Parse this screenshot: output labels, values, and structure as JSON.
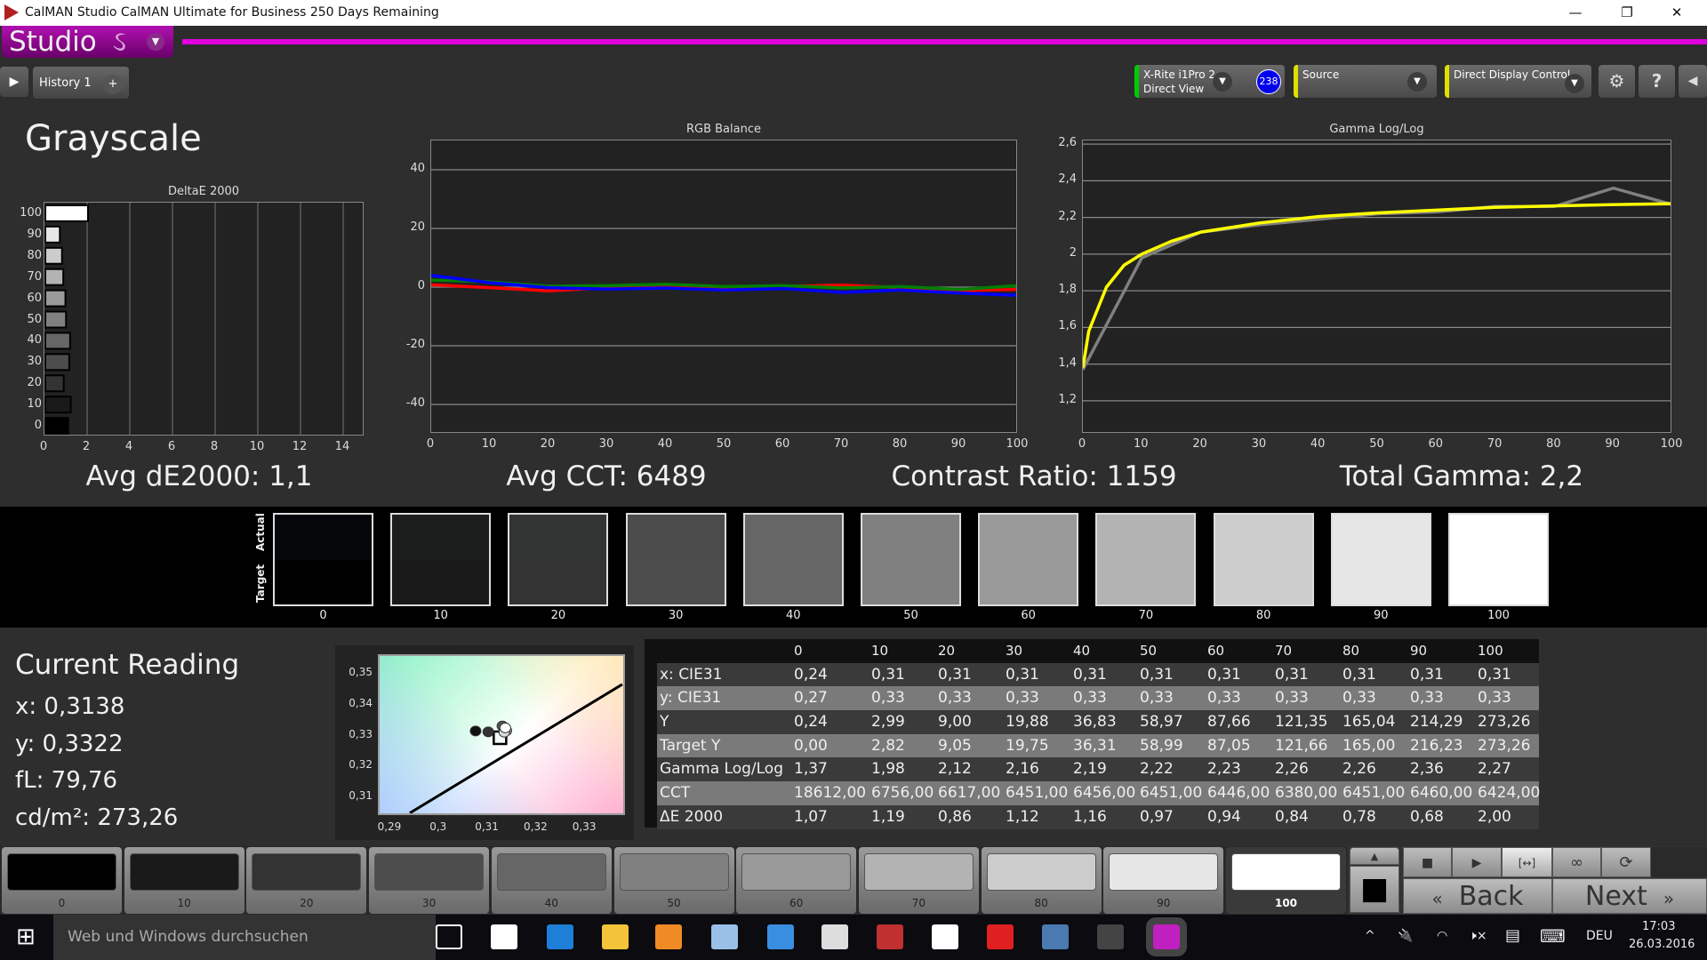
{
  "window": {
    "title": "CalMAN Studio CalMAN Ultimate for Business 250 Days Remaining",
    "minimize": "—",
    "restore": "❐",
    "close": "✕"
  },
  "app": {
    "logo_text": "Studio",
    "logo_symbol": "ઽ",
    "menu_arrow": "▼",
    "accent": "#e000e0"
  },
  "tabs": {
    "toggle": "▶",
    "items": [
      {
        "label": "History 1"
      }
    ],
    "add": "+"
  },
  "toolbar": {
    "meter": {
      "line1": "X-Rite i1Pro 2",
      "line2": "Direct View",
      "status_color": "#00cc00",
      "badge": "238",
      "dropdown": "▼"
    },
    "source": {
      "label": "Source",
      "status_color": "#e0e000",
      "dropdown": "▼"
    },
    "display": {
      "label": "Direct Display Control",
      "status_color": "#e0e000",
      "dropdown": "▼"
    },
    "settings_icon": "⚙",
    "help_icon": "?",
    "collapse_icon": "◀"
  },
  "page": {
    "title": "Grayscale"
  },
  "chart_data": [
    {
      "type": "bar",
      "title": "DeltaE 2000",
      "orientation": "horizontal",
      "categories": [
        "0",
        "10",
        "20",
        "30",
        "40",
        "50",
        "60",
        "70",
        "80",
        "90",
        "100"
      ],
      "values": [
        1.07,
        1.19,
        0.86,
        1.12,
        1.16,
        0.97,
        0.94,
        0.84,
        0.78,
        0.68,
        2.0
      ],
      "xlim": [
        0,
        15
      ],
      "xticks": [
        "0",
        "2",
        "4",
        "6",
        "8",
        "10",
        "12",
        "14"
      ],
      "grid": true
    },
    {
      "type": "line",
      "title": "RGB Balance",
      "x": [
        0,
        10,
        20,
        30,
        40,
        50,
        60,
        70,
        80,
        90,
        100
      ],
      "series": [
        {
          "color": "#ff0000",
          "values": [
            0.8,
            -0.2,
            -1.3,
            -0.2,
            0,
            -0.6,
            0.2,
            0.7,
            -0.2,
            -1.2,
            -0.8
          ]
        },
        {
          "color": "#008000",
          "values": [
            2.4,
            1.8,
            0.3,
            0.5,
            1.0,
            0.2,
            0.5,
            -0.3,
            0.2,
            -0.8,
            0.5
          ]
        },
        {
          "color": "#0000ff",
          "values": [
            4.0,
            1.5,
            -0.2,
            -0.7,
            -0.3,
            -1.0,
            -0.5,
            -1.8,
            -1.0,
            -2.0,
            -2.8
          ]
        }
      ],
      "ylim": [
        -50,
        50
      ],
      "yticks": [
        "40",
        "20",
        "0",
        "-20",
        "-40"
      ],
      "xticks": [
        "0",
        "10",
        "20",
        "30",
        "40",
        "50",
        "60",
        "70",
        "80",
        "90",
        "100"
      ],
      "grid": true
    },
    {
      "type": "line",
      "title": "Gamma Log/Log",
      "series": [
        {
          "color": "#808080",
          "x": [
            0,
            10,
            20,
            30,
            40,
            50,
            60,
            70,
            80,
            90,
            100
          ],
          "values": [
            1.37,
            1.98,
            2.12,
            2.16,
            2.19,
            2.22,
            2.23,
            2.26,
            2.26,
            2.36,
            2.27
          ]
        },
        {
          "color": "#ffff00",
          "x": [
            0,
            1,
            2,
            4,
            7,
            10,
            15,
            20,
            30,
            40,
            50,
            60,
            70,
            80,
            90,
            100
          ],
          "values": [
            1.38,
            1.58,
            1.66,
            1.82,
            1.94,
            2.0,
            2.07,
            2.12,
            2.17,
            2.205,
            2.225,
            2.24,
            2.255,
            2.263,
            2.27,
            2.275
          ]
        }
      ],
      "ylim": [
        1.02,
        2.62
      ],
      "yticks": [
        "2,6",
        "2,4",
        "2,2",
        "2",
        "1,8",
        "1,6",
        "1,4",
        "1,2"
      ],
      "xticks": [
        "0",
        "10",
        "20",
        "30",
        "40",
        "50",
        "60",
        "70",
        "80",
        "90",
        "100"
      ],
      "grid": true
    },
    {
      "type": "scatter",
      "title": "",
      "xlim": [
        0.288,
        0.338
      ],
      "ylim": [
        0.3045,
        0.3555
      ],
      "xticks": [
        "0,29",
        "0,3",
        "0,31",
        "0,32",
        "0,33"
      ],
      "yticks": [
        "0,35",
        "0,34",
        "0,33",
        "0,32",
        "0,31"
      ],
      "points": [
        {
          "x": 0.3077,
          "y": 0.3312,
          "color": "#111111"
        },
        {
          "x": 0.3103,
          "y": 0.3309,
          "color": "#333333"
        },
        {
          "x": 0.3132,
          "y": 0.3328,
          "color": "#555555"
        },
        {
          "x": 0.314,
          "y": 0.3313,
          "color": "#999999"
        },
        {
          "x": 0.3136,
          "y": 0.3308,
          "color": "#dddddd"
        },
        {
          "x": 0.3138,
          "y": 0.3322,
          "color": "#ffffff"
        }
      ],
      "target": {
        "x": 0.3127,
        "y": 0.329
      },
      "locus": [
        {
          "x": 0.2942,
          "y": 0.3046
        },
        {
          "x": 0.3378,
          "y": 0.3463
        }
      ]
    }
  ],
  "summary": {
    "avg_de": "Avg dE2000: 1,1",
    "avg_cct": "Avg CCT: 6489",
    "contrast": "Contrast Ratio: 1159",
    "gamma": "Total Gamma: 2,2"
  },
  "swatches": {
    "actual_label": "Actual",
    "target_label": "Target",
    "levels": [
      "0",
      "10",
      "20",
      "30",
      "40",
      "50",
      "60",
      "70",
      "80",
      "90",
      "100"
    ],
    "actual_colors": [
      "#05070a",
      "#1c1d1d",
      "#333434",
      "#4c4c4c",
      "#666666",
      "#808080",
      "#999999",
      "#b3b3b3",
      "#cccccc",
      "#e6e6e6",
      "#ffffff"
    ],
    "target_colors": [
      "#000000",
      "#1a1a1a",
      "#333333",
      "#4d4d4d",
      "#666666",
      "#808080",
      "#999999",
      "#b3b3b3",
      "#cccccc",
      "#e6e6e6",
      "#ffffff"
    ]
  },
  "reading": {
    "title": "Current Reading",
    "x": "x: 0,3138",
    "y": "y: 0,3322",
    "fl": "fL: 79,76",
    "cdm2": "cd/m²: 273,26"
  },
  "table": {
    "columns": [
      "0",
      "10",
      "20",
      "30",
      "40",
      "50",
      "60",
      "70",
      "80",
      "90",
      "100"
    ],
    "rows": [
      {
        "label": "x: CIE31",
        "values": [
          "0,24",
          "0,31",
          "0,31",
          "0,31",
          "0,31",
          "0,31",
          "0,31",
          "0,31",
          "0,31",
          "0,31",
          "0,31"
        ]
      },
      {
        "label": "y: CIE31",
        "values": [
          "0,27",
          "0,33",
          "0,33",
          "0,33",
          "0,33",
          "0,33",
          "0,33",
          "0,33",
          "0,33",
          "0,33",
          "0,33"
        ]
      },
      {
        "label": "Y",
        "values": [
          "0,24",
          "2,99",
          "9,00",
          "19,88",
          "36,83",
          "58,97",
          "87,66",
          "121,35",
          "165,04",
          "214,29",
          "273,26"
        ]
      },
      {
        "label": "Target Y",
        "values": [
          "0,00",
          "2,82",
          "9,05",
          "19,75",
          "36,31",
          "58,99",
          "87,05",
          "121,66",
          "165,00",
          "216,23",
          "273,26"
        ]
      },
      {
        "label": "Gamma Log/Log",
        "values": [
          "1,37",
          "1,98",
          "2,12",
          "2,16",
          "2,19",
          "2,22",
          "2,23",
          "2,26",
          "2,26",
          "2,36",
          "2,27"
        ]
      },
      {
        "label": "CCT",
        "values": [
          "18612,00",
          "6756,00",
          "6617,00",
          "6451,00",
          "6456,00",
          "6451,00",
          "6446,00",
          "6380,00",
          "6451,00",
          "6460,00",
          "6424,00"
        ]
      },
      {
        "label": "ΔE 2000",
        "values": [
          "1,07",
          "1,19",
          "0,86",
          "1,12",
          "1,16",
          "0,97",
          "0,94",
          "0,84",
          "0,78",
          "0,68",
          "2,00"
        ]
      }
    ]
  },
  "patches": {
    "levels": [
      "0",
      "10",
      "20",
      "30",
      "40",
      "50",
      "60",
      "70",
      "80",
      "90",
      "100"
    ],
    "selected": "100",
    "colors": [
      "#000000",
      "#1a1a1a",
      "#333333",
      "#4d4d4d",
      "#666666",
      "#808080",
      "#999999",
      "#b3b3b3",
      "#cccccc",
      "#e6e6e6",
      "#ffffff"
    ]
  },
  "controls": {
    "up": "▲",
    "stop_big": "■",
    "stop": "■",
    "play": "▶",
    "range": "[↔]",
    "loop": "∞",
    "refresh": "⟳",
    "back": "Back",
    "back_arrows": "«",
    "next": "Next",
    "next_arrows": "»"
  },
  "taskbar": {
    "search_placeholder": "Web und Windows durchsuchen",
    "language": "DEU",
    "time": "17:03",
    "date": "26.03.2016",
    "start_icon": "⊞",
    "apps": [
      {
        "name": "task-view",
        "color": "#ffffff"
      },
      {
        "name": "store",
        "color": "#ffffff"
      },
      {
        "name": "edge",
        "color": "#1e7fd8"
      },
      {
        "name": "explorer",
        "color": "#f3c33a"
      },
      {
        "name": "media",
        "color": "#f08a24"
      },
      {
        "name": "paint",
        "color": "#9ac0e8"
      },
      {
        "name": "outlook",
        "color": "#3a8ee0"
      },
      {
        "name": "timer",
        "color": "#dddddd"
      },
      {
        "name": "steps",
        "color": "#c03030"
      },
      {
        "name": "camera",
        "color": "#ffffff"
      },
      {
        "name": "ccleaner",
        "color": "#e02020"
      },
      {
        "name": "steam",
        "color": "#4a7ab0"
      },
      {
        "name": "terminal",
        "color": "#444444"
      },
      {
        "name": "calman",
        "color": "#c020c0"
      }
    ],
    "tray": {
      "chevron": "^",
      "battery": "🔌",
      "wifi": "◠",
      "volume": "🕨×",
      "notifications": "▤",
      "keyboard": "⌨"
    }
  }
}
